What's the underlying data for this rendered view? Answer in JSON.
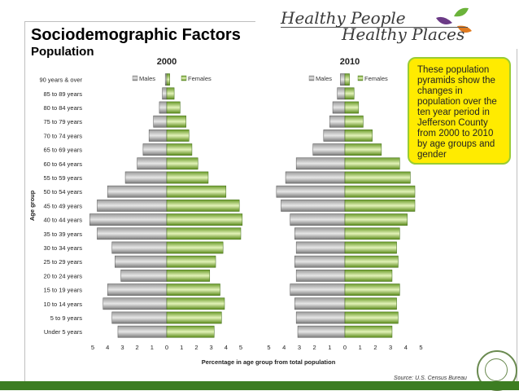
{
  "header": {
    "title": "Sociodemographic Factors",
    "subtitle": "Population",
    "logo_line1": "Healthy People",
    "logo_line2": "Healthy Places"
  },
  "note_text": "These population pyramids show the changes in population over the ten year period in Jefferson County from 2000 to 2010 by age groups and gender",
  "source": "Source: U.S. Census Bureau",
  "colors": {
    "accent": "#3c7d22",
    "note_bg": "#ffeb00",
    "note_border": "#99cc33"
  },
  "chart_data": [
    {
      "type": "bar",
      "title": "2000",
      "orientation": "horizontal-pyramid",
      "categories": [
        "Under 5 years",
        "5 to 9 years",
        "10 to 14 years",
        "15 to 19 years",
        "20 to 24 years",
        "25 to 29 years",
        "30 to 34 years",
        "35 to 39 years",
        "40 to 44 years",
        "45 to 49 years",
        "50 to 54 years",
        "55 to 59 years",
        "60 to 64 years",
        "65 to 69 years",
        "70 to 74 years",
        "75 to 79 years",
        "80 to 84 years",
        "85 to 89 years",
        "90 years & over"
      ],
      "series": [
        {
          "name": "Males",
          "values": [
            3.3,
            3.7,
            4.3,
            4.0,
            3.1,
            3.5,
            3.7,
            4.7,
            5.2,
            4.7,
            4.0,
            2.8,
            2.0,
            1.6,
            1.2,
            0.9,
            0.5,
            0.3,
            0.1
          ]
        },
        {
          "name": "Females",
          "values": [
            3.2,
            3.7,
            3.9,
            3.6,
            2.9,
            3.3,
            3.8,
            5.0,
            5.1,
            4.9,
            4.0,
            2.8,
            2.1,
            1.7,
            1.5,
            1.3,
            0.9,
            0.5,
            0.2
          ]
        }
      ],
      "xlabel": "",
      "ylabel": "Age group",
      "xlim": [
        -5,
        5
      ],
      "xticks": [
        "5",
        "4",
        "3",
        "2",
        "1",
        "0",
        "1",
        "2",
        "3",
        "4",
        "5"
      ],
      "legend": "top"
    },
    {
      "type": "bar",
      "title": "2010",
      "orientation": "horizontal-pyramid",
      "categories": [
        "Under 5 years",
        "5 to 9 years",
        "10 to 14 years",
        "15 to 19 years",
        "20 to 24 years",
        "25 to 29 years",
        "30 to 34 years",
        "35 to 39 years",
        "40 to 44 years",
        "45 to 49 years",
        "50 to 54 years",
        "55 to 59 years",
        "60 to 64 years",
        "65 to 69 years",
        "70 to 74 years",
        "75 to 79 years",
        "80 to 84 years",
        "85 to 89 years",
        "90 years & over"
      ],
      "series": [
        {
          "name": "Males",
          "values": [
            3.1,
            3.2,
            3.3,
            3.6,
            3.2,
            3.3,
            3.2,
            3.3,
            3.6,
            4.2,
            4.5,
            3.9,
            3.2,
            2.1,
            1.4,
            1.0,
            0.8,
            0.5,
            0.3
          ]
        },
        {
          "name": "Females",
          "values": [
            3.1,
            3.5,
            3.4,
            3.6,
            3.1,
            3.5,
            3.4,
            3.6,
            4.1,
            4.6,
            4.6,
            4.3,
            3.6,
            2.4,
            1.8,
            1.2,
            0.9,
            0.6,
            0.3
          ]
        }
      ],
      "xlabel": "Percentage in age group from total population",
      "xlim": [
        -5,
        5
      ],
      "xticks": [
        "5",
        "4",
        "3",
        "2",
        "1",
        "0",
        "1",
        "2",
        "3",
        "4",
        "5"
      ],
      "legend": "top"
    }
  ]
}
